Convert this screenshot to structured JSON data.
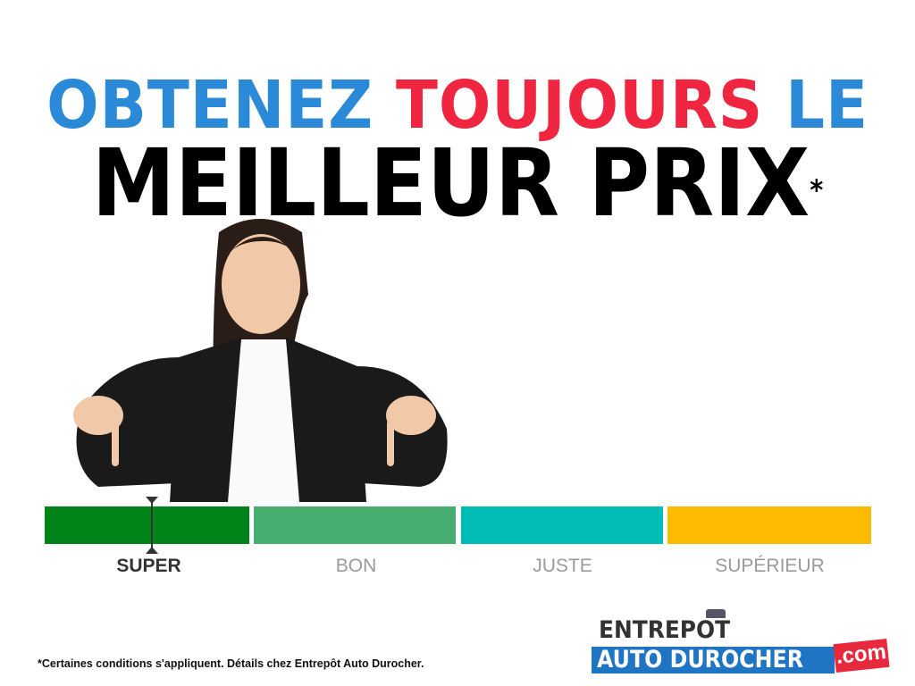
{
  "headline": {
    "word1": "OBTENEZ",
    "word2": "TOUJOURS",
    "word3": "LE",
    "line2": "MEILLEUR PRIX",
    "asterisk": "*"
  },
  "colors": {
    "blue": "#2a8ad8",
    "red": "#f0253f"
  },
  "price_scale": {
    "indicator_position": 0.13,
    "segments": [
      {
        "label": "SUPER",
        "color": "#008319",
        "active": true
      },
      {
        "label": "BON",
        "color": "#45ad6f",
        "active": false
      },
      {
        "label": "JUSTE",
        "color": "#00bcb4",
        "active": false
      },
      {
        "label": "SUPÉRIEUR",
        "color": "#fdbb00",
        "active": false
      }
    ]
  },
  "footnote": "*Certaines conditions s'appliquent. Détails chez Entrepôt Auto Durocher.",
  "logo": {
    "line1": "ENTREPOT",
    "line2": "AUTO DUROCHER",
    "suffix": ".com"
  }
}
